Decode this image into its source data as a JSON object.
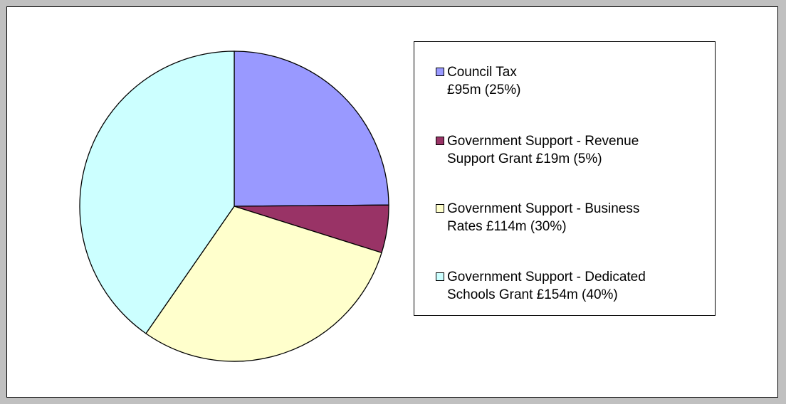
{
  "chart_data": {
    "type": "pie",
    "slices": [
      {
        "label": "Council Tax\n£95m (25%)",
        "value": 95,
        "percent": 25,
        "color": "#9999ff"
      },
      {
        "label": "Government Support - Revenue\nSupport Grant £19m (5%)",
        "value": 19,
        "percent": 5,
        "color": "#993366"
      },
      {
        "label": "Government Support - Business\nRates £114m (30%)",
        "value": 114,
        "percent": 30,
        "color": "#ffffcc"
      },
      {
        "label": "Government Support - Dedicated\nSchools Grant £154m (40%)",
        "value": 154,
        "percent": 40,
        "color": "#ccffff"
      }
    ],
    "legend_position": "right"
  }
}
